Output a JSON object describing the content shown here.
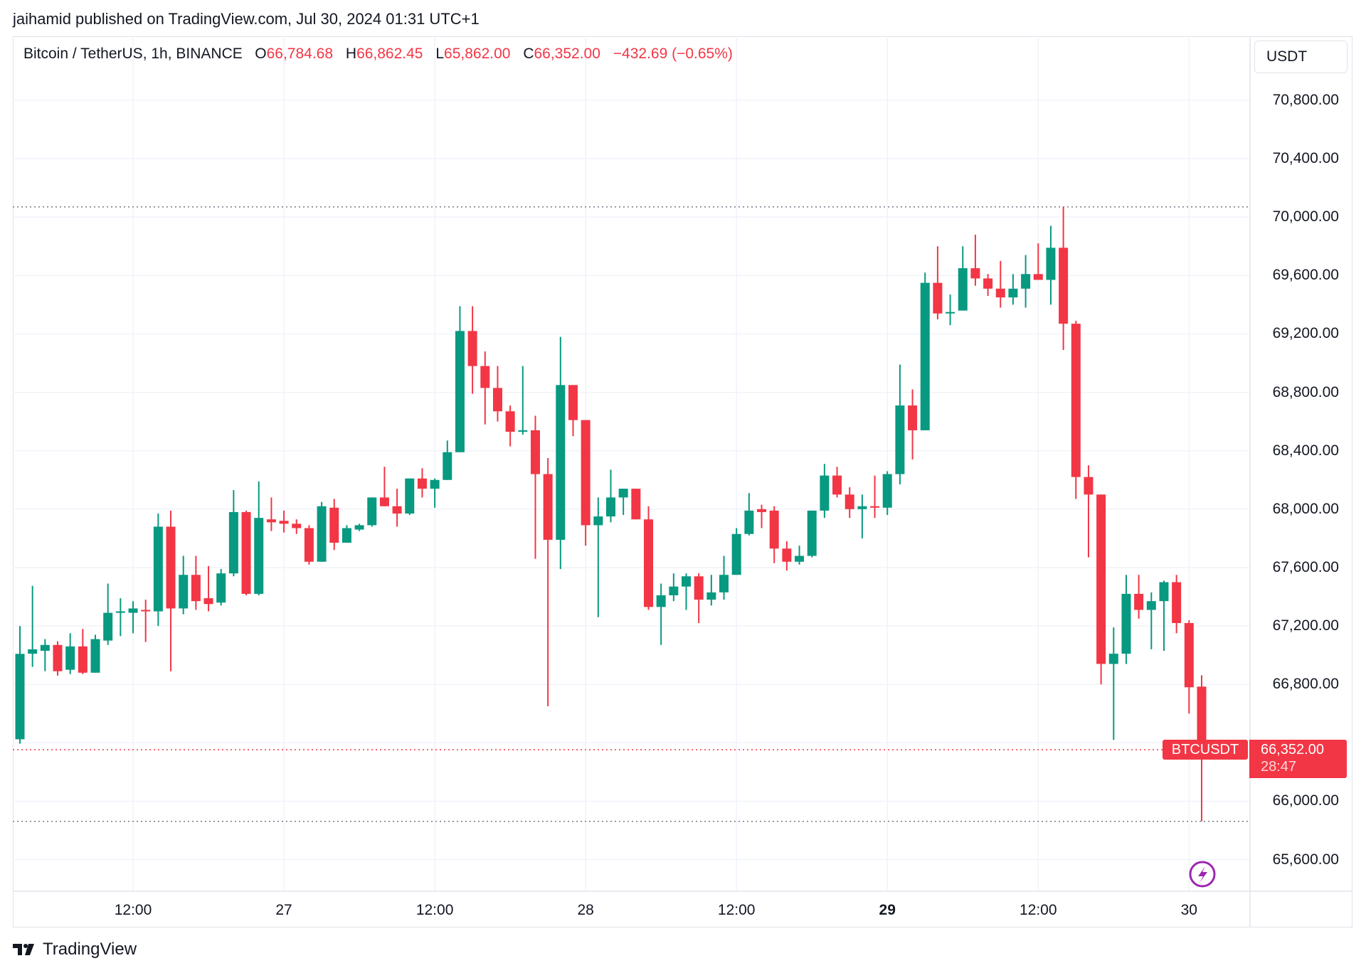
{
  "header": {
    "published": "jaihamid published on TradingView.com, Jul 30, 2024 01:31 UTC+1"
  },
  "legend": {
    "symbol": "Bitcoin / TetherUS, 1h, BINANCE",
    "o_label": "O",
    "o_value": "66,784.68",
    "h_label": "H",
    "h_value": "66,862.45",
    "l_label": "L",
    "l_value": "65,862.00",
    "c_label": "C",
    "c_value": "66,352.00",
    "change": "−432.69 (−0.65%)"
  },
  "currency": "USDT",
  "last_price": {
    "symbol": "BTCUSDT",
    "price": "66,352.00",
    "countdown": "28:47",
    "value": 66352
  },
  "brand": "TradingView",
  "colors": {
    "up": "#089981",
    "down": "#f23645",
    "grid": "#f0f3fa",
    "alert": "#9c27b0"
  },
  "chart_data": {
    "type": "candlestick",
    "interval": "1h",
    "ylim": [
      65400,
      71000
    ],
    "y_ticks": [
      {
        "value": 70800,
        "label": "70,800.00"
      },
      {
        "value": 70400,
        "label": "70,400.00"
      },
      {
        "value": 70000,
        "label": "70,000.00"
      },
      {
        "value": 69600,
        "label": "69,600.00"
      },
      {
        "value": 69200,
        "label": "69,200.00"
      },
      {
        "value": 68800,
        "label": "68,800.00"
      },
      {
        "value": 68400,
        "label": "68,400.00"
      },
      {
        "value": 68000,
        "label": "68,000.00"
      },
      {
        "value": 67600,
        "label": "67,600.00"
      },
      {
        "value": 67200,
        "label": "67,200.00"
      },
      {
        "value": 66800,
        "label": "66,800.00"
      },
      {
        "value": 66000,
        "label": "66,000.00"
      },
      {
        "value": 65600,
        "label": "65,600.00"
      }
    ],
    "x_ticks": [
      {
        "index": 9,
        "label": "12:00",
        "bold": false
      },
      {
        "index": 21,
        "label": "27",
        "bold": false
      },
      {
        "index": 33,
        "label": "12:00",
        "bold": false
      },
      {
        "index": 45,
        "label": "28",
        "bold": false
      },
      {
        "index": 57,
        "label": "12:00",
        "bold": false
      },
      {
        "index": 69,
        "label": "29",
        "bold": true
      },
      {
        "index": 81,
        "label": "12:00",
        "bold": false
      },
      {
        "index": 93,
        "label": "30",
        "bold": false
      }
    ],
    "candles_ohlc": [
      [
        66424,
        67200,
        66394,
        67009
      ],
      [
        67010,
        67475,
        66920,
        67040
      ],
      [
        67030,
        67110,
        66890,
        67070
      ],
      [
        67070,
        67095,
        66860,
        66890
      ],
      [
        66900,
        67150,
        66870,
        67060
      ],
      [
        67060,
        67180,
        66870,
        66880
      ],
      [
        66880,
        67140,
        66880,
        67110
      ],
      [
        67100,
        67490,
        67070,
        67290
      ],
      [
        67290,
        67390,
        67130,
        67300
      ],
      [
        67290,
        67370,
        67150,
        67320
      ],
      [
        67310,
        67380,
        67090,
        67300
      ],
      [
        67300,
        67970,
        67200,
        67880
      ],
      [
        67880,
        67990,
        66890,
        67320
      ],
      [
        67320,
        67680,
        67280,
        67550
      ],
      [
        67550,
        67680,
        67310,
        67370
      ],
      [
        67390,
        67610,
        67300,
        67350
      ],
      [
        67360,
        67590,
        67340,
        67560
      ],
      [
        67560,
        68130,
        67540,
        67980
      ],
      [
        67980,
        67990,
        67410,
        67420
      ],
      [
        67420,
        68190,
        67410,
        67940
      ],
      [
        67930,
        68080,
        67850,
        67910
      ],
      [
        67920,
        67990,
        67840,
        67900
      ],
      [
        67900,
        67930,
        67830,
        67870
      ],
      [
        67870,
        67890,
        67620,
        67640
      ],
      [
        67640,
        68050,
        67640,
        68020
      ],
      [
        68010,
        68070,
        67720,
        67770
      ],
      [
        67770,
        67890,
        67770,
        67870
      ],
      [
        67860,
        67900,
        67850,
        67890
      ],
      [
        67890,
        68080,
        67880,
        68080
      ],
      [
        68080,
        68290,
        68020,
        68020
      ],
      [
        68020,
        68140,
        67880,
        67970
      ],
      [
        67970,
        68210,
        67960,
        68210
      ],
      [
        68210,
        68280,
        68080,
        68140
      ],
      [
        68140,
        68210,
        68010,
        68200
      ],
      [
        68200,
        68470,
        68200,
        68390
      ],
      [
        68390,
        69390,
        68390,
        69220
      ],
      [
        69220,
        69390,
        68790,
        68980
      ],
      [
        68980,
        69080,
        68580,
        68830
      ],
      [
        68830,
        68980,
        68600,
        68670
      ],
      [
        68670,
        68710,
        68430,
        68530
      ],
      [
        68530,
        68980,
        68510,
        68540
      ],
      [
        68540,
        68640,
        67660,
        68240
      ],
      [
        68240,
        68350,
        66650,
        67790
      ],
      [
        67790,
        69180,
        67590,
        68850
      ],
      [
        68850,
        68850,
        68500,
        68610
      ],
      [
        68610,
        68610,
        67750,
        67890
      ],
      [
        67890,
        68080,
        67260,
        67950
      ],
      [
        67950,
        68270,
        67910,
        68080
      ],
      [
        68080,
        68140,
        67960,
        68140
      ],
      [
        68140,
        68140,
        67930,
        67930
      ],
      [
        67930,
        68020,
        67310,
        67330
      ],
      [
        67330,
        67490,
        67070,
        67410
      ],
      [
        67410,
        67560,
        67370,
        67470
      ],
      [
        67470,
        67560,
        67310,
        67540
      ],
      [
        67540,
        67560,
        67220,
        67380
      ],
      [
        67380,
        67550,
        67340,
        67430
      ],
      [
        67430,
        67680,
        67380,
        67550
      ],
      [
        67550,
        67870,
        67550,
        67830
      ],
      [
        67830,
        68110,
        67820,
        67990
      ],
      [
        68000,
        68030,
        67870,
        67980
      ],
      [
        67990,
        68020,
        67630,
        67730
      ],
      [
        67730,
        67780,
        67580,
        67640
      ],
      [
        67640,
        67750,
        67620,
        67680
      ],
      [
        67680,
        67990,
        67670,
        67990
      ],
      [
        67990,
        68310,
        67940,
        68230
      ],
      [
        68230,
        68290,
        68080,
        68100
      ],
      [
        68100,
        68150,
        67940,
        68000
      ],
      [
        68000,
        68100,
        67800,
        68020
      ],
      [
        68020,
        68230,
        67940,
        68010
      ],
      [
        68010,
        68260,
        67960,
        68240
      ],
      [
        68240,
        68990,
        68170,
        68710
      ],
      [
        68710,
        68820,
        68340,
        68540
      ],
      [
        68540,
        69620,
        68540,
        69550
      ],
      [
        69550,
        69800,
        69300,
        69340
      ],
      [
        69340,
        69470,
        69260,
        69350
      ],
      [
        69360,
        69800,
        69360,
        69650
      ],
      [
        69650,
        69880,
        69530,
        69580
      ],
      [
        69580,
        69610,
        69460,
        69510
      ],
      [
        69510,
        69700,
        69380,
        69450
      ],
      [
        69450,
        69610,
        69400,
        69510
      ],
      [
        69510,
        69740,
        69380,
        69610
      ],
      [
        69610,
        69820,
        69570,
        69570
      ],
      [
        69570,
        69940,
        69400,
        69790
      ],
      [
        69790,
        70070,
        69090,
        69270
      ],
      [
        69270,
        69290,
        68070,
        68220
      ],
      [
        68220,
        68300,
        67670,
        68100
      ],
      [
        68100,
        68100,
        66800,
        66940
      ],
      [
        66940,
        67190,
        66420,
        67010
      ],
      [
        67010,
        67550,
        66940,
        67420
      ],
      [
        67420,
        67550,
        67250,
        67310
      ],
      [
        67310,
        67430,
        67040,
        67370
      ],
      [
        67370,
        67510,
        67030,
        67500
      ],
      [
        67500,
        67550,
        67150,
        67220
      ],
      [
        67220,
        67240,
        66600,
        66780
      ],
      [
        66784.68,
        66862.45,
        65862,
        66352
      ]
    ]
  }
}
